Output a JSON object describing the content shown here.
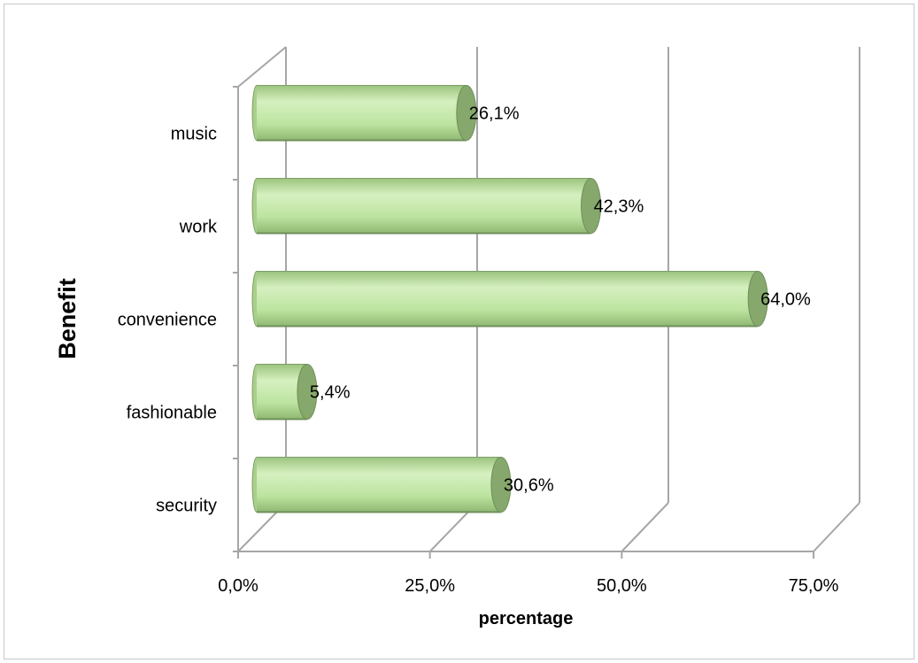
{
  "chart_data": {
    "type": "bar",
    "orientation": "horizontal",
    "style": "3d-cylinder",
    "categories": [
      "security",
      "fashionable",
      "convenience",
      "work",
      "music"
    ],
    "values": [
      30.6,
      5.4,
      64.0,
      42.3,
      26.1
    ],
    "data_labels": [
      "30,6%",
      "5,4%",
      "64,0%",
      "42,3%",
      "26,1%"
    ],
    "x_ticks": [
      0,
      25,
      50,
      75
    ],
    "x_tick_labels": [
      "0,0%",
      "25,0%",
      "50,0%",
      "75,0%"
    ],
    "xlim": [
      0,
      75
    ],
    "xlabel": "percentage",
    "ylabel": "Benefit",
    "grid": true,
    "legend": "none",
    "colors": {
      "bar_light": "#d6f0c0",
      "bar_mid": "#bde4a0",
      "bar_dark": "#9cc47e",
      "bar_cap": "#86a86c",
      "bar_outline": "#7d9e66",
      "grid": "#a6a6a6"
    }
  }
}
